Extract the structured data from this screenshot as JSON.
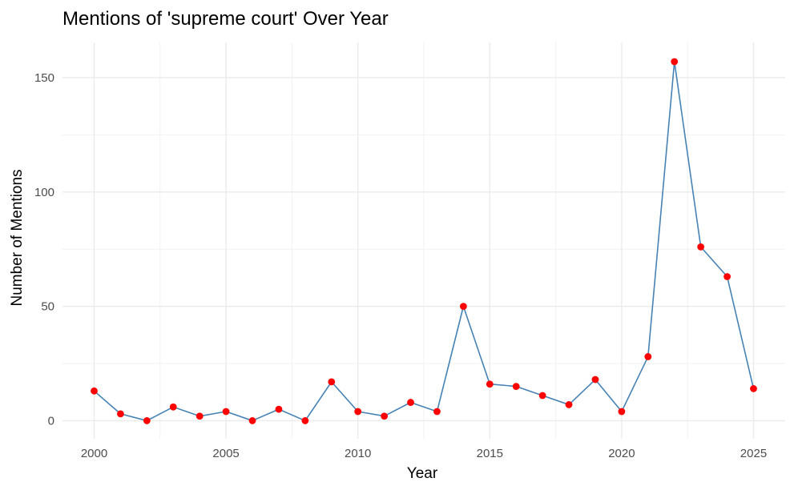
{
  "chart_data": {
    "type": "line",
    "title": "Mentions of 'supreme court' Over Year",
    "xlabel": "Year",
    "ylabel": "Number of Mentions",
    "xlim": [
      1998.8,
      2026.2
    ],
    "ylim": [
      -7.9,
      165.4
    ],
    "x_ticks": [
      2000,
      2005,
      2010,
      2015,
      2020,
      2025
    ],
    "y_ticks": [
      0,
      50,
      100,
      150
    ],
    "grid": true,
    "line_color": "#4682b4",
    "point_color": "#ff0000",
    "series": [
      {
        "x": [
          2000,
          2001,
          2002,
          2003,
          2004,
          2005,
          2006,
          2007,
          2008,
          2009,
          2010,
          2011,
          2012,
          2013,
          2014,
          2015,
          2016,
          2017,
          2018,
          2019,
          2020,
          2021,
          2022,
          2023,
          2024,
          2025
        ],
        "y": [
          13,
          3,
          0,
          6,
          2,
          4,
          0,
          5,
          0,
          17,
          4,
          2,
          8,
          4,
          50,
          16,
          15,
          11,
          7,
          18,
          4,
          28,
          157,
          76,
          63,
          14
        ]
      }
    ]
  }
}
